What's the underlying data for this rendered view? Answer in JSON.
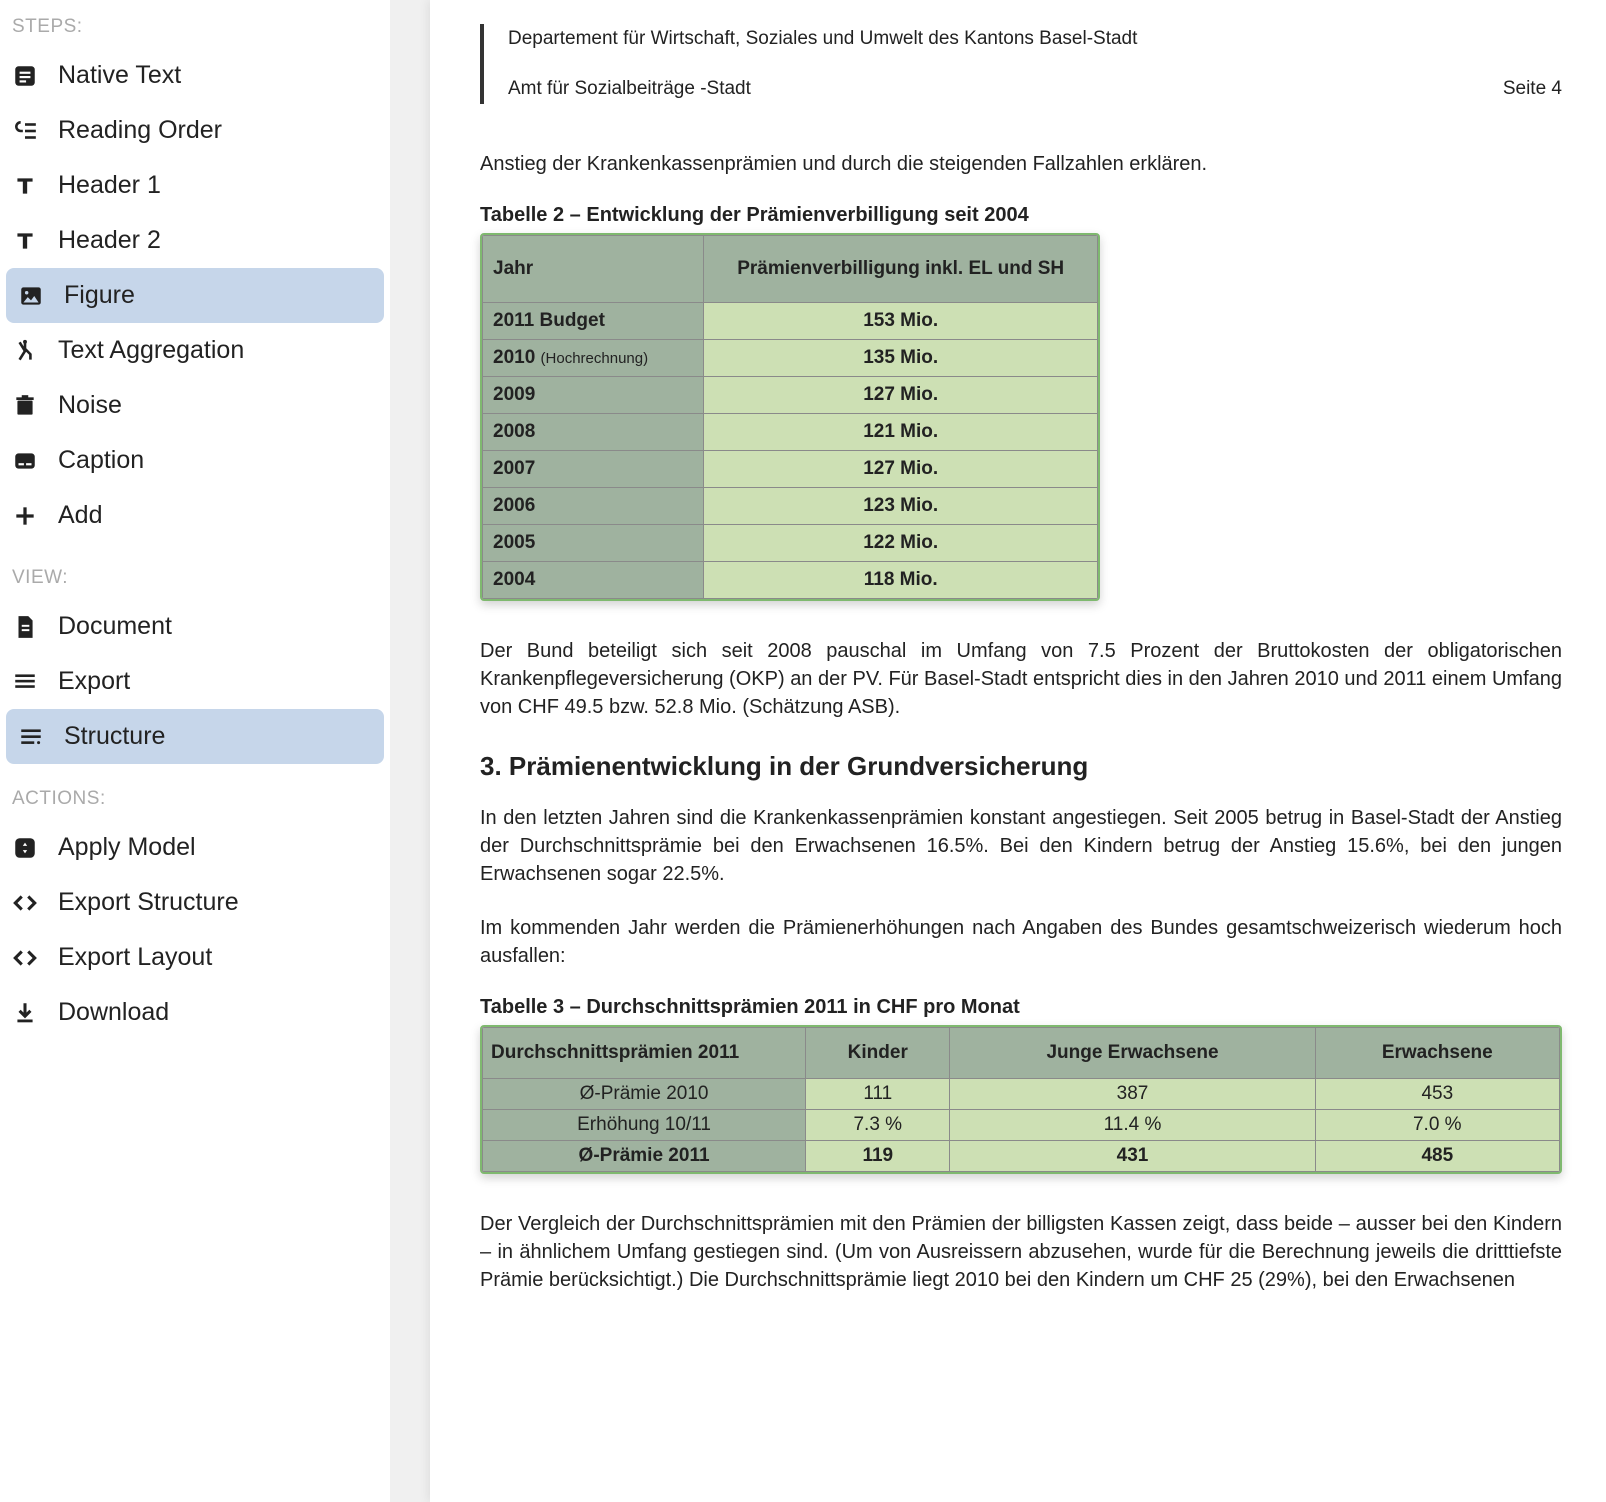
{
  "sidebar": {
    "sections": {
      "steps": {
        "label": "STEPS:",
        "items": [
          {
            "label": "Native Text"
          },
          {
            "label": "Reading Order"
          },
          {
            "label": "Header 1"
          },
          {
            "label": "Header 2"
          },
          {
            "label": "Figure"
          },
          {
            "label": "Text Aggregation"
          },
          {
            "label": "Noise"
          },
          {
            "label": "Caption"
          },
          {
            "label": "Add"
          }
        ]
      },
      "view": {
        "label": "VIEW:",
        "items": [
          {
            "label": "Document"
          },
          {
            "label": "Export"
          },
          {
            "label": "Structure"
          }
        ]
      },
      "actions": {
        "label": "ACTIONS:",
        "items": [
          {
            "label": "Apply Model"
          },
          {
            "label": "Export Structure"
          },
          {
            "label": "Export Layout"
          },
          {
            "label": "Download"
          }
        ]
      }
    }
  },
  "doc": {
    "header_dept": "Departement für Wirtschaft, Soziales und Umwelt des Kantons Basel-Stadt",
    "header_office": "Amt für Sozialbeiträge -Stadt",
    "page_no": "Seite 4",
    "para1": "Anstieg der Krankenkassenprämien und durch die steigenden Fallzahlen erklären.",
    "table2_caption": "Tabelle 2 – Entwicklung der Prämienverbilligung seit 2004",
    "table2": {
      "headers": [
        "Jahr",
        "Prämienverbilligung inkl. EL und SH"
      ],
      "rows": [
        [
          "2011 Budget",
          "153 Mio."
        ],
        [
          "2010 (Hochrechnung)",
          "135 Mio."
        ],
        [
          "2009",
          "127 Mio."
        ],
        [
          "2008",
          "121 Mio."
        ],
        [
          "2007",
          "127 Mio."
        ],
        [
          "2006",
          "123 Mio."
        ],
        [
          "2005",
          "122 Mio."
        ],
        [
          "2004",
          "118 Mio."
        ]
      ],
      "header_bg": "#9fb29f",
      "value_bg": "#cde0b4",
      "border_color": "#8a8a8a",
      "highlight_border": "#7fb96f"
    },
    "para2": "Der Bund beteiligt sich seit 2008 pauschal im Umfang von 7.5 Prozent der Bruttokosten der obligatorischen Krankenpflegeversicherung (OKP) an der PV. Für Basel-Stadt entspricht dies in den Jahren 2010 und 2011 einem Umfang von CHF 49.5 bzw. 52.8 Mio. (Schätzung ASB).",
    "section3_heading": "3.   Prämienentwicklung in der Grundversicherung",
    "para3": "In den letzten Jahren sind die Krankenkassenprämien konstant angestiegen. Seit 2005 be­trug in Basel-Stadt der Anstieg der Durchschnittsprämie bei den Erwachsenen 16.5%. Bei den Kindern betrug der Anstieg 15.6%, bei den jungen Erwachsenen sogar 22.5%.",
    "para4": "Im kommenden Jahr werden die Prämienerhöhungen nach Angaben des Bundes gesamt­schweizerisch wiederum hoch ausfallen:",
    "table3_caption": "Tabelle 3 – Durchschnittsprämien 2011 in CHF pro Monat",
    "table3": {
      "headers": [
        "Durchschnittsprämien 2011",
        "Kinder",
        "Junge Erwachsene",
        "Erwachsene"
      ],
      "rows": [
        [
          "Ø-Prämie 2010",
          "111",
          "387",
          "453"
        ],
        [
          "Erhöhung 10/11",
          "7.3 %",
          "11.4 %",
          "7.0 %"
        ],
        [
          "Ø-Prämie 2011",
          "119",
          "431",
          "485"
        ]
      ],
      "header_bg": "#9fb29f",
      "value_bg": "#cde0b4",
      "border_color": "#8a8a8a",
      "highlight_border": "#7fb96f"
    },
    "para5": "Der Vergleich der Durchschnittsprämien mit den Prämien der billigsten Kassen zeigt, dass beide – ausser bei den Kindern – in ähnlichem Umfang gestiegen sind. (Um von Ausreissern abzusehen, wurde für die Berechnung jeweils die dritttiefste Prämie berücksichtigt.) Die Durchschnittsprämie liegt 2010 bei den Kindern um CHF 25 (29%), bei den Erwachsenen"
  }
}
